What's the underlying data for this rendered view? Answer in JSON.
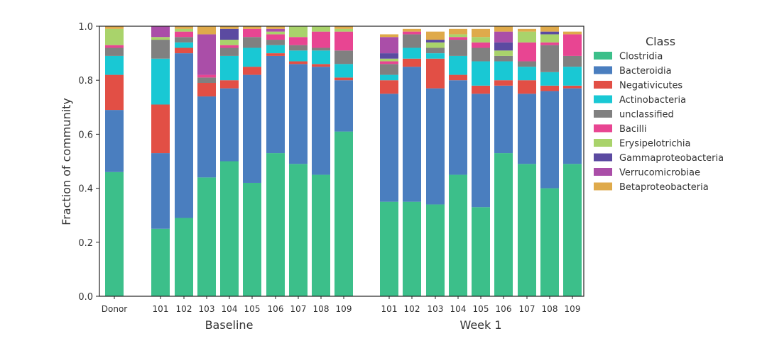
{
  "chart_data": {
    "type": "bar",
    "stacked": true,
    "ylabel": "Fraction of community",
    "ylim": [
      0,
      1.0
    ],
    "yticks": [
      "0.0",
      "0.2",
      "0.4",
      "0.6",
      "0.8",
      "1.0"
    ],
    "legend_title": "Class",
    "legend_position": "right",
    "groups": [
      {
        "label": "Baseline",
        "categories": [
          "Donor",
          "101",
          "102",
          "103",
          "104",
          "105",
          "106",
          "107",
          "108",
          "109"
        ]
      },
      {
        "label": "Week 1",
        "categories": [
          "101",
          "102",
          "103",
          "104",
          "105",
          "106",
          "107",
          "108",
          "109"
        ]
      }
    ],
    "categories": [
      "Donor",
      "101",
      "102",
      "103",
      "104",
      "105",
      "106",
      "107",
      "108",
      "109",
      "101",
      "102",
      "103",
      "104",
      "105",
      "106",
      "107",
      "108",
      "109"
    ],
    "series": [
      {
        "name": "Clostridia",
        "color": "#3cbf8a",
        "values": [
          0.46,
          0.25,
          0.29,
          0.44,
          0.5,
          0.42,
          0.53,
          0.49,
          0.45,
          0.61,
          0.35,
          0.35,
          0.34,
          0.45,
          0.33,
          0.53,
          0.49,
          0.4,
          0.49
        ]
      },
      {
        "name": "Bacteroidia",
        "color": "#4a7ebf",
        "values": [
          0.23,
          0.28,
          0.61,
          0.3,
          0.27,
          0.4,
          0.36,
          0.37,
          0.4,
          0.19,
          0.4,
          0.5,
          0.43,
          0.35,
          0.42,
          0.25,
          0.26,
          0.36,
          0.28
        ]
      },
      {
        "name": "Negativicutes",
        "color": "#e24f45",
        "values": [
          0.13,
          0.18,
          0.02,
          0.05,
          0.03,
          0.03,
          0.01,
          0.01,
          0.01,
          0.01,
          0.05,
          0.03,
          0.11,
          0.02,
          0.03,
          0.02,
          0.05,
          0.02,
          0.01
        ]
      },
      {
        "name": "Actinobacteria",
        "color": "#19c8d4",
        "values": [
          0.07,
          0.17,
          0.02,
          0.0,
          0.09,
          0.07,
          0.03,
          0.04,
          0.05,
          0.05,
          0.02,
          0.04,
          0.02,
          0.07,
          0.09,
          0.07,
          0.05,
          0.05,
          0.07
        ]
      },
      {
        "name": "unclassified",
        "color": "#808080",
        "values": [
          0.03,
          0.07,
          0.02,
          0.02,
          0.03,
          0.04,
          0.02,
          0.02,
          0.01,
          0.05,
          0.04,
          0.05,
          0.02,
          0.06,
          0.05,
          0.02,
          0.02,
          0.1,
          0.04
        ]
      },
      {
        "name": "Bacilli",
        "color": "#e84592",
        "values": [
          0.01,
          0.0,
          0.02,
          0.01,
          0.01,
          0.03,
          0.02,
          0.03,
          0.06,
          0.07,
          0.01,
          0.01,
          0.0,
          0.01,
          0.02,
          0.0,
          0.07,
          0.01,
          0.08
        ]
      },
      {
        "name": "Erysipelotrichia",
        "color": "#a9d36b",
        "values": [
          0.06,
          0.01,
          0.01,
          0.0,
          0.02,
          0.0,
          0.01,
          0.04,
          0.02,
          0.01,
          0.01,
          0.0,
          0.02,
          0.01,
          0.02,
          0.02,
          0.04,
          0.03,
          0.0
        ]
      },
      {
        "name": "Gammaproteobacteria",
        "color": "#5b4aa1",
        "values": [
          0.0,
          0.0,
          0.0,
          0.0,
          0.04,
          0.0,
          0.0,
          0.0,
          0.0,
          0.0,
          0.02,
          0.0,
          0.01,
          0.0,
          0.0,
          0.03,
          0.0,
          0.01,
          0.0
        ]
      },
      {
        "name": "Verrucomicrobiae",
        "color": "#aa4ea8",
        "values": [
          0.0,
          0.04,
          0.0,
          0.15,
          0.0,
          0.0,
          0.01,
          0.0,
          0.0,
          0.0,
          0.06,
          0.0,
          0.0,
          0.0,
          0.0,
          0.04,
          0.0,
          0.0,
          0.0
        ]
      },
      {
        "name": "Betaproteobacteria",
        "color": "#dfaa4b",
        "values": [
          0.01,
          0.0,
          0.01,
          0.03,
          0.01,
          0.01,
          0.01,
          0.0,
          0.01,
          0.01,
          0.01,
          0.01,
          0.03,
          0.02,
          0.03,
          0.02,
          0.01,
          0.02,
          0.01
        ]
      }
    ]
  }
}
